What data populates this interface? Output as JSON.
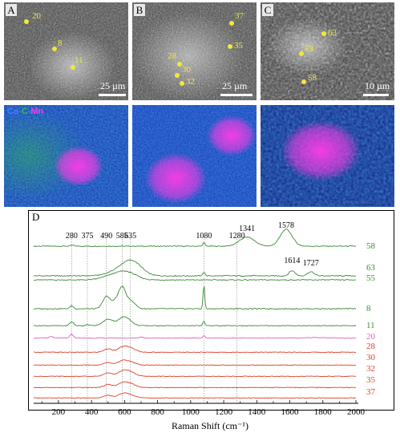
{
  "sem": {
    "panels": [
      {
        "letter": "A",
        "scale_label": "25 µm",
        "points": [
          {
            "label": "20",
            "dx": 33,
            "dy": 27,
            "lx": 40,
            "ly": 14
          },
          {
            "label": "8",
            "dx": 68,
            "dy": 61,
            "lx": 72,
            "ly": 48
          },
          {
            "label": "11",
            "dx": 91,
            "dy": 84,
            "lx": 93,
            "ly": 69
          }
        ]
      },
      {
        "letter": "B",
        "scale_label": "25 µm",
        "points": [
          {
            "label": "37",
            "dx": 289,
            "dy": 29,
            "lx": 293,
            "ly": 14
          },
          {
            "label": "35",
            "dx": 287,
            "dy": 58,
            "lx": 292,
            "ly": 51
          },
          {
            "label": "28",
            "dx": 224,
            "dy": 80,
            "lx": 209,
            "ly": 64
          },
          {
            "label": "30",
            "dx": 221,
            "dy": 94,
            "lx": 227,
            "ly": 81
          },
          {
            "label": "32",
            "dx": 227,
            "dy": 104,
            "lx": 232,
            "ly": 96
          }
        ]
      },
      {
        "letter": "C",
        "scale_label": "10 µm",
        "points": [
          {
            "label": "63",
            "dx": 404,
            "dy": 42,
            "lx": 409,
            "ly": 35
          },
          {
            "label": "53",
            "dx": 376,
            "dy": 67,
            "lx": 380,
            "ly": 55
          },
          {
            "label": "58",
            "dx": 379,
            "dy": 102,
            "lx": 384,
            "ly": 91
          }
        ]
      }
    ]
  },
  "map_legend": {
    "ca": "Ca",
    "sep1": "-",
    "c": "C",
    "sep2": "-",
    "mn": "Mn"
  },
  "colors": {
    "green": "#3f8a3a",
    "pink": "#e060b8",
    "red": "#e0402a",
    "map_ca": "#2a55e8",
    "map_c": "#33c04a",
    "map_mn": "#ff3ce6"
  },
  "chart_data": {
    "type": "line",
    "panel_letter": "D",
    "xlabel": "Raman Shift (cm⁻¹)",
    "xlim": [
      50,
      2000
    ],
    "xticks": [
      100,
      200,
      300,
      400,
      500,
      600,
      700,
      800,
      900,
      1000,
      1100,
      1200,
      1300,
      1400,
      1500,
      1600,
      1700,
      1800,
      1900,
      2000
    ],
    "xtick_labels": [
      "",
      "200",
      "",
      "400",
      "",
      "600",
      "",
      "800",
      "",
      "1000",
      "",
      "1200",
      "",
      "1400",
      "",
      "1600",
      "",
      "1800",
      "",
      "2000"
    ],
    "peak_lines": [
      280,
      375,
      490,
      585,
      635,
      1080,
      1280
    ],
    "peak_labels": [
      {
        "text": "280",
        "x": 280
      },
      {
        "text": "375",
        "x": 375
      },
      {
        "text": "490",
        "x": 490
      },
      {
        "text": "585",
        "x": 585
      },
      {
        "text": "635",
        "x": 635
      },
      {
        "text": "1080",
        "x": 1080
      },
      {
        "text": "1280",
        "x": 1280
      },
      {
        "text": "1341",
        "x": 1341
      },
      {
        "text": "1578",
        "x": 1578
      },
      {
        "text": "1614",
        "x": 1614
      },
      {
        "text": "1727",
        "x": 1727
      }
    ],
    "series": [
      {
        "name": "58",
        "color": "#3f8a3a",
        "baseline": 0.5,
        "peaks": [
          [
            285,
            0.6,
            12
          ],
          [
            1080,
            2.2,
            7
          ],
          [
            1341,
            6.0,
            45
          ],
          [
            1578,
            11.0,
            36
          ]
        ]
      },
      {
        "name": "63",
        "color": "#3f8a3a",
        "baseline": 0.5,
        "peaks": [
          [
            585,
            4.0,
            70
          ],
          [
            650,
            7.0,
            55
          ],
          [
            1080,
            2.5,
            6
          ],
          [
            1614,
            3.2,
            18
          ],
          [
            1727,
            2.5,
            20
          ]
        ]
      },
      {
        "name": "55",
        "color": "#3f8a3a",
        "baseline": 0.5,
        "peaks": [
          [
            500,
            2.0,
            50
          ],
          [
            580,
            4.0,
            50
          ],
          [
            640,
            3.0,
            50
          ]
        ]
      },
      {
        "name": "8",
        "color": "#3f8a3a",
        "baseline": 0.5,
        "peaks": [
          [
            280,
            2.0,
            10
          ],
          [
            490,
            8.0,
            22
          ],
          [
            540,
            4.0,
            20
          ],
          [
            585,
            14.0,
            22
          ],
          [
            640,
            5.0,
            25
          ],
          [
            1080,
            16.0,
            5
          ]
        ]
      },
      {
        "name": "11",
        "color": "#3f8a3a",
        "baseline": 0.5,
        "peaks": [
          [
            280,
            3.0,
            12
          ],
          [
            375,
            1.0,
            10
          ],
          [
            500,
            5.0,
            30
          ],
          [
            600,
            7.0,
            35
          ],
          [
            1080,
            3.5,
            6
          ]
        ]
      },
      {
        "name": "20",
        "color": "#e060b8",
        "baseline": 0.3,
        "peaks": [
          [
            155,
            1.5,
            10
          ],
          [
            280,
            3.5,
            10
          ],
          [
            700,
            1.0,
            10
          ],
          [
            1080,
            2.0,
            6
          ],
          [
            1750,
            0.5,
            40
          ]
        ]
      },
      {
        "name": "28",
        "color": "#e0402a",
        "baseline": 0.5,
        "peaks": [
          [
            500,
            3.0,
            25
          ],
          [
            590,
            4.5,
            30
          ],
          [
            640,
            3.0,
            30
          ]
        ]
      },
      {
        "name": "30",
        "color": "#e0402a",
        "baseline": 0.5,
        "peaks": [
          [
            500,
            2.5,
            25
          ],
          [
            590,
            4.0,
            30
          ],
          [
            640,
            2.5,
            30
          ]
        ]
      },
      {
        "name": "32",
        "color": "#e0402a",
        "baseline": 0.5,
        "peaks": [
          [
            500,
            3.5,
            25
          ],
          [
            590,
            5.0,
            30
          ],
          [
            640,
            3.5,
            30
          ]
        ]
      },
      {
        "name": "35",
        "color": "#e0402a",
        "baseline": 0.5,
        "peaks": [
          [
            500,
            3.0,
            25
          ],
          [
            590,
            4.5,
            30
          ],
          [
            640,
            3.0,
            30
          ]
        ]
      },
      {
        "name": "37",
        "color": "#e0402a",
        "baseline": 0.5,
        "peaks": [
          [
            500,
            2.5,
            25
          ],
          [
            590,
            4.0,
            30
          ],
          [
            640,
            2.5,
            30
          ]
        ]
      }
    ]
  }
}
